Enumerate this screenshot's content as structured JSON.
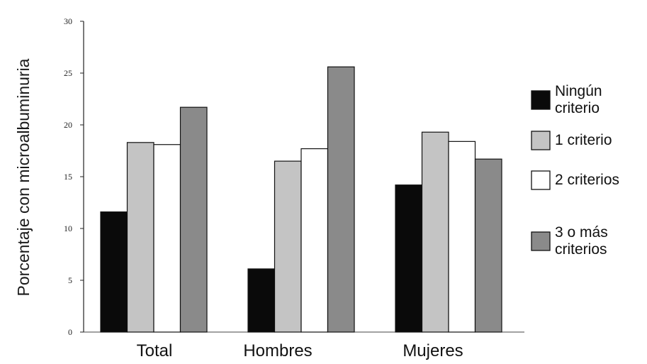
{
  "chart_data": {
    "type": "bar",
    "ylabel": "Porcentaje con microalbuminuria",
    "xlabel": "",
    "ylim": [
      0,
      30
    ],
    "yticks": [
      0,
      5,
      10,
      15,
      20,
      25,
      30
    ],
    "grid": false,
    "legend_position": "right",
    "categories": [
      "Total",
      "Hombres",
      "Mujeres"
    ],
    "series": [
      {
        "name": "Ningún criterio",
        "legend_lines": [
          "Ningún",
          "criterio"
        ],
        "color": "#0a0a0a",
        "values": [
          11.6,
          6.1,
          14.2
        ]
      },
      {
        "name": "1 criterio",
        "legend_lines": [
          "1 criterio"
        ],
        "color": "#c4c4c4",
        "values": [
          18.3,
          16.5,
          19.3
        ]
      },
      {
        "name": "2 criterios",
        "legend_lines": [
          "2 criterios"
        ],
        "color": "#ffffff",
        "values": [
          18.1,
          17.7,
          18.4
        ]
      },
      {
        "name": "3 o más criterios",
        "legend_lines": [
          "3 o más",
          "criterios"
        ],
        "color": "#8a8a8a",
        "values": [
          21.7,
          25.6,
          16.7
        ]
      }
    ]
  }
}
